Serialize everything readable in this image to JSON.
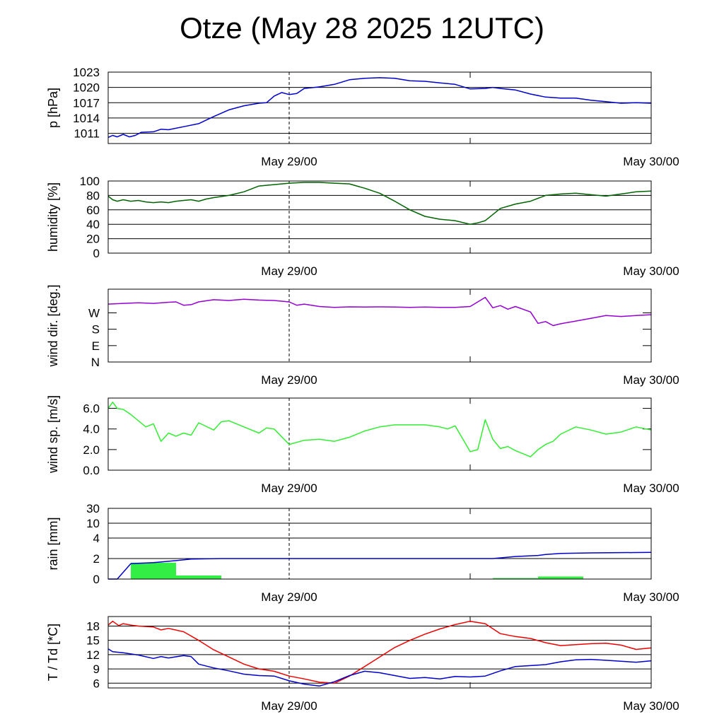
{
  "title": "Otze (May 28 2025 12UTC)",
  "colors": {
    "pressure": "#0000cc",
    "humidity": "#006400",
    "wind_dir": "#9400d3",
    "wind_speed": "#33ee33",
    "rain_total": "#0000cc",
    "rain_bars": "#33ee44",
    "temperature": "#ee0000",
    "dewpoint": "#0000cc",
    "grid": "#000000"
  },
  "time_axis": {
    "start": "May 28 12UTC",
    "end": "May 30 00UTC",
    "unit": "hours since start",
    "range": [
      0,
      36
    ],
    "labels": [
      {
        "hour": 12,
        "text": "May 29/00"
      },
      {
        "hour": 36,
        "text": "May 30/00"
      }
    ],
    "minor_ticks_hours": [
      24
    ],
    "reference_line_hour": 12
  },
  "chart_data": [
    {
      "type": "line",
      "ylabel": "p [hPa]",
      "ylim": [
        1009,
        1023
      ],
      "ticks": [
        1011,
        1014,
        1017,
        1020,
        1023
      ],
      "tick_labels": [
        "1011",
        "1014",
        "1017",
        "1020",
        "1023"
      ],
      "grid": true,
      "series": [
        {
          "color_key": "pressure",
          "x": [
            0,
            0.3,
            0.6,
            1,
            1.4,
            1.8,
            2.2,
            3,
            3.5,
            4,
            5,
            6,
            7,
            8,
            9,
            10,
            10.5,
            11,
            11.5,
            12,
            12.5,
            13,
            14,
            15,
            16,
            17,
            18,
            19,
            20,
            21,
            22,
            23,
            24,
            25,
            25.5,
            26,
            27,
            28,
            29,
            30,
            31,
            32,
            33,
            34,
            35,
            36
          ],
          "values": [
            1010.2,
            1010.6,
            1010.3,
            1010.8,
            1010.3,
            1010.6,
            1011.2,
            1011.3,
            1011.8,
            1011.7,
            1012.3,
            1012.9,
            1014.3,
            1015.6,
            1016.4,
            1016.9,
            1017.0,
            1018.3,
            1019.0,
            1018.6,
            1018.8,
            1019.8,
            1020.1,
            1020.6,
            1021.5,
            1021.8,
            1021.9,
            1021.8,
            1021.3,
            1021.2,
            1020.9,
            1020.6,
            1019.7,
            1019.8,
            1020.0,
            1019.8,
            1019.5,
            1018.7,
            1018.1,
            1017.9,
            1017.9,
            1017.5,
            1017.2,
            1016.9,
            1017.0,
            1016.9
          ]
        }
      ]
    },
    {
      "type": "line",
      "ylabel": "humidity [%]",
      "ylim": [
        0,
        100
      ],
      "ticks": [
        0,
        20,
        40,
        60,
        80,
        100
      ],
      "tick_labels": [
        "0",
        "20",
        "40",
        "60",
        "80",
        "100"
      ],
      "grid": true,
      "series": [
        {
          "color_key": "humidity",
          "x": [
            0,
            0.3,
            0.6,
            1,
            1.5,
            2,
            2.5,
            3,
            3.5,
            4,
            4.5,
            5,
            5.5,
            6,
            6.5,
            7,
            8,
            9,
            10,
            11,
            12,
            13,
            14,
            15,
            16,
            17,
            18,
            19,
            20,
            21,
            22,
            23,
            24,
            24.5,
            25,
            26,
            27,
            28,
            29,
            30,
            31,
            32,
            33,
            34,
            35,
            36
          ],
          "values": [
            79,
            74,
            72,
            74,
            72,
            73,
            71,
            70,
            71,
            70,
            72,
            73,
            74,
            72,
            75,
            77,
            80,
            85,
            93,
            95,
            97,
            98,
            98,
            97,
            96,
            90,
            83,
            72,
            60,
            51,
            47,
            45,
            40,
            42,
            45,
            62,
            68,
            72,
            80,
            82,
            83,
            81,
            79,
            82,
            85,
            86
          ]
        }
      ]
    },
    {
      "type": "line",
      "ylabel": "wind dir. [deg.]",
      "ylim": [
        0,
        400
      ],
      "ticks": [
        0,
        90,
        180,
        270
      ],
      "tick_labels": [
        "N",
        "E",
        "S",
        "W"
      ],
      "grid": false,
      "series": [
        {
          "color_key": "wind_dir",
          "x": [
            0,
            1,
            2,
            3,
            4,
            4.5,
            5,
            5.5,
            6,
            7,
            8,
            9,
            10,
            11,
            12,
            12.5,
            13,
            14,
            15,
            16,
            17,
            18,
            19,
            20,
            21,
            22,
            23,
            24,
            25,
            25.5,
            26,
            26.5,
            27,
            28,
            28.5,
            29,
            29.5,
            30,
            31,
            32,
            33,
            34,
            35,
            36
          ],
          "values": [
            318,
            322,
            325,
            322,
            328,
            330,
            312,
            315,
            330,
            342,
            338,
            345,
            340,
            338,
            330,
            312,
            318,
            305,
            300,
            303,
            302,
            303,
            302,
            300,
            302,
            300,
            300,
            305,
            355,
            298,
            310,
            290,
            305,
            275,
            212,
            222,
            200,
            210,
            225,
            240,
            255,
            250,
            255,
            260
          ]
        }
      ]
    },
    {
      "type": "line",
      "ylabel": "wind sp. [m/s]",
      "ylim": [
        0,
        7
      ],
      "ticks": [
        0,
        2,
        4,
        6
      ],
      "tick_labels": [
        "0.0",
        "2.0",
        "4.0",
        "6.0"
      ],
      "grid": false,
      "series": [
        {
          "color_key": "wind_speed",
          "x": [
            0,
            0.3,
            0.6,
            1,
            1.5,
            2,
            2.5,
            3,
            3.5,
            4,
            4.5,
            5,
            5.5,
            6,
            7,
            7.5,
            8,
            9,
            10,
            10.5,
            11,
            12,
            13,
            14,
            15,
            16,
            17,
            18,
            19,
            20,
            21,
            22,
            22.5,
            23,
            24,
            24.5,
            25,
            25.5,
            26,
            26.5,
            27,
            28,
            28.5,
            29,
            29.5,
            30,
            31,
            32,
            33,
            34,
            35,
            36
          ],
          "values": [
            6.0,
            6.6,
            6.0,
            5.9,
            5.4,
            4.8,
            4.2,
            4.5,
            2.8,
            3.6,
            3.3,
            3.6,
            3.4,
            4.6,
            3.9,
            4.7,
            4.8,
            4.2,
            3.6,
            4.1,
            4.0,
            2.5,
            2.9,
            3.0,
            2.8,
            3.2,
            3.8,
            4.2,
            4.4,
            4.4,
            4.4,
            4.2,
            4.0,
            4.3,
            1.8,
            2.0,
            4.9,
            3.0,
            2.1,
            2.3,
            1.9,
            1.3,
            2.0,
            2.5,
            2.8,
            3.5,
            4.2,
            3.9,
            3.5,
            3.7,
            4.2,
            3.9
          ]
        }
      ]
    },
    {
      "type": "bar",
      "ylabel": "rain [mm]",
      "ylim": [
        0,
        30
      ],
      "ticks": [
        0,
        2,
        4,
        10,
        30
      ],
      "tick_labels": [
        "0",
        "2",
        "4",
        "10",
        "30"
      ],
      "grid": true,
      "scale": "nonlinear",
      "bars": [
        {
          "start": 1.5,
          "end": 4.5,
          "value": 1.6
        },
        {
          "start": 4.5,
          "end": 7.5,
          "value": 0.35
        },
        {
          "start": 25.5,
          "end": 28.5,
          "value": 0.1
        },
        {
          "start": 28.5,
          "end": 31.5,
          "value": 0.25
        }
      ],
      "series": [
        {
          "color_key": "rain_total",
          "x": [
            0,
            0.6,
            1.5,
            3,
            4.5,
            5.5,
            7.5,
            10,
            15,
            20,
            25.5,
            27,
            28.5,
            29,
            30,
            32,
            36
          ],
          "values": [
            0,
            0,
            1.5,
            1.6,
            1.8,
            1.95,
            2.0,
            2.0,
            2.0,
            2.0,
            2.0,
            2.2,
            2.3,
            2.4,
            2.5,
            2.55,
            2.6
          ]
        }
      ]
    },
    {
      "type": "line",
      "ylabel": "T / Td [*C]",
      "ylim": [
        5,
        20
      ],
      "ticks": [
        6,
        9,
        12,
        15,
        18
      ],
      "tick_labels": [
        "6",
        "9",
        "12",
        "15",
        "18"
      ],
      "grid": true,
      "series": [
        {
          "color_key": "temperature",
          "x": [
            0,
            0.3,
            0.7,
            1,
            1.5,
            2,
            3,
            3.5,
            4,
            5,
            6,
            7,
            8,
            9,
            10,
            11,
            12,
            13,
            14,
            15,
            16,
            17,
            18,
            19,
            20,
            21,
            22,
            23,
            24,
            25,
            26,
            27,
            28,
            29,
            30,
            31,
            32,
            33,
            34,
            35,
            36
          ],
          "values": [
            18.2,
            19.0,
            18.1,
            18.5,
            18.2,
            18.0,
            17.8,
            17.2,
            17.5,
            16.8,
            15.0,
            13.0,
            11.5,
            10.0,
            9.0,
            8.5,
            7.5,
            6.9,
            6.2,
            6.0,
            7.5,
            9.5,
            11.5,
            13.5,
            15.0,
            16.3,
            17.4,
            18.3,
            19.0,
            18.5,
            16.4,
            15.8,
            15.4,
            14.5,
            13.9,
            14.1,
            14.3,
            14.4,
            14.0,
            13.1,
            13.4
          ]
        },
        {
          "color_key": "dewpoint",
          "x": [
            0,
            0.3,
            1,
            2,
            3,
            3.5,
            4,
            5,
            5.5,
            6,
            7,
            8,
            9,
            10,
            11,
            12,
            13,
            14,
            15,
            16,
            17,
            18,
            19,
            20,
            21,
            22,
            23,
            24,
            25,
            26,
            27,
            28,
            29,
            30,
            31,
            32,
            33,
            34,
            35,
            36
          ],
          "values": [
            13.2,
            12.6,
            12.4,
            11.9,
            11.2,
            11.6,
            11.3,
            11.8,
            11.6,
            10.0,
            9.2,
            8.6,
            7.9,
            7.6,
            7.5,
            6.5,
            5.8,
            5.4,
            6.3,
            7.6,
            8.5,
            8.2,
            7.6,
            7.0,
            7.2,
            6.9,
            7.4,
            7.3,
            7.5,
            8.6,
            9.5,
            9.7,
            9.9,
            10.5,
            10.9,
            11.0,
            10.8,
            10.6,
            10.4,
            10.7
          ]
        }
      ]
    }
  ]
}
